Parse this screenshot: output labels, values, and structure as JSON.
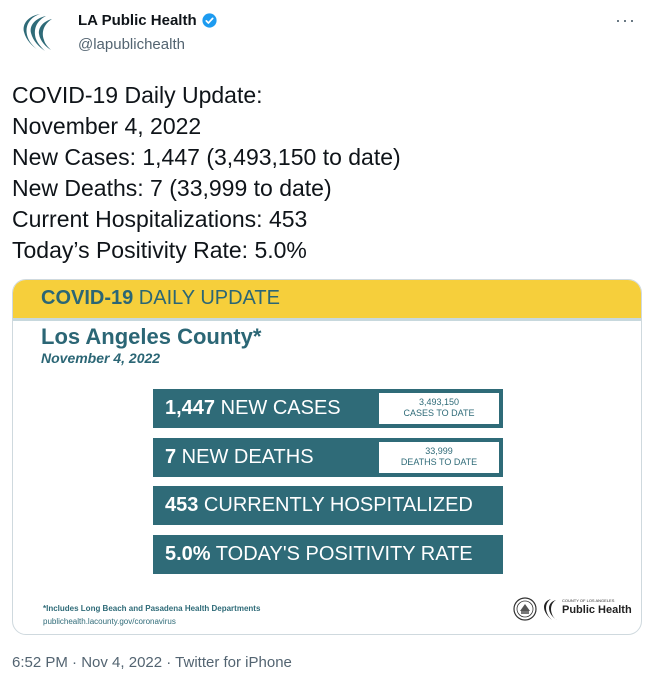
{
  "account": {
    "name": "LA Public Health",
    "handle": "@lapublichealth",
    "verified": true,
    "avatar_icon": "la-public-health-logo-icon",
    "more_label": "···"
  },
  "tweet": {
    "lines": [
      "COVID-19 Daily Update:",
      "November 4, 2022",
      "New Cases: 1,447 (3,493,150 to date)",
      "New Deaths: 7 (33,999 to date)",
      "Current Hospitalizations: 453",
      "Today’s Positivity Rate: 5.0%"
    ]
  },
  "card": {
    "banner_bold": "COVID-19",
    "banner_rest": " DAILY UPDATE",
    "county": "Los Angeles County*",
    "date": "November 4, 2022",
    "stats": [
      {
        "value": "1,447",
        "label": " NEW CASES",
        "todate_value": "3,493,150",
        "todate_label": "CASES TO DATE"
      },
      {
        "value": "7",
        "label": " NEW DEATHS",
        "todate_value": "33,999",
        "todate_label": "DEATHS TO DATE"
      },
      {
        "value": "453",
        "label": " CURRENTLY HOSPITALIZED"
      },
      {
        "value": "5.0%",
        "label": " TODAY'S POSITIVITY RATE"
      }
    ],
    "footnote": "*Includes Long Beach and Pasadena Health Departments",
    "site": "publichealth.lacounty.gov/coronavirus",
    "logo_small": "COUNTY OF LOS ANGELES",
    "logo_big": "Public Health"
  },
  "meta": {
    "time": "6:52 PM",
    "sep1": " · ",
    "date": "Nov 4, 2022",
    "sep2": " · ",
    "source": "Twitter for iPhone"
  },
  "colors": {
    "banner": "#f6cf3b",
    "teal": "#2f6b78",
    "verified": "#1d9bf0"
  }
}
